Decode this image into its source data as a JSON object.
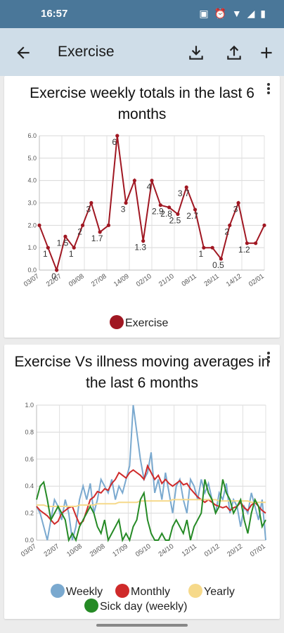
{
  "status_bar": {
    "time": "16:57"
  },
  "app_bar": {
    "title": "Exercise"
  },
  "colors": {
    "status_bar": "#4a7799",
    "app_bar": "#cfdde8",
    "exercise": "#a01722",
    "weekly": "#7aa9cf",
    "monthly": "#cf2a2a",
    "yearly": "#f6d98a",
    "sick": "#258a25"
  },
  "icons": {
    "back": "arrow-left-icon",
    "download": "download-icon",
    "share": "share-icon",
    "add": "plus-icon",
    "menu": "more-vert-icon"
  },
  "chart_data": [
    {
      "type": "line",
      "title": "Exercise weekly totals in the last 6 months",
      "x_tick_labels": [
        "03/07",
        "22/07",
        "09/08",
        "27/08",
        "14/09",
        "02/10",
        "21/10",
        "08/11",
        "26/11",
        "14/12",
        "02/01"
      ],
      "ylim": [
        0,
        6
      ],
      "y_ticks": [
        "0.0",
        "1.0",
        "2.0",
        "3.0",
        "4.0",
        "5.0",
        "6.0"
      ],
      "grid": true,
      "legend": "bottom",
      "series": [
        {
          "name": "Exercise",
          "values": [
            2.0,
            1.0,
            0.0,
            1.5,
            1.0,
            2.0,
            3.0,
            1.7,
            2.0,
            6.0,
            3.0,
            4.0,
            1.3,
            4.0,
            2.9,
            2.8,
            2.5,
            3.7,
            2.7,
            1.0,
            1.0,
            0.5,
            2.0,
            3.0,
            1.2,
            1.2,
            2.0
          ]
        }
      ],
      "data_labels": [
        "",
        "1",
        "0",
        "1.5",
        "1",
        "2",
        "3",
        "1.7",
        "",
        "6",
        "3",
        "",
        "1.3",
        "4",
        "2.9",
        "2.8",
        "2.5",
        "3.7",
        "2.7",
        "1",
        "",
        "0.5",
        "2",
        "3",
        "1.2",
        "",
        ""
      ]
    },
    {
      "type": "line",
      "title": "Exercise Vs illness moving averages in the last 6 months",
      "x_tick_labels": [
        "03/07",
        "22/07",
        "10/08",
        "29/08",
        "17/09",
        "05/10",
        "24/10",
        "12/11",
        "01/12",
        "20/12",
        "07/01"
      ],
      "ylim": [
        0,
        1.0
      ],
      "y_ticks": [
        "0.0",
        "0.2",
        "0.4",
        "0.6",
        "0.8",
        "1.0"
      ],
      "grid": true,
      "legend": "bottom",
      "series": [
        {
          "name": "Weekly",
          "values": [
            0.25,
            0.2,
            0.1,
            0.0,
            0.15,
            0.3,
            0.25,
            0.15,
            0.3,
            0.2,
            0.0,
            0.1,
            0.3,
            0.4,
            0.3,
            0.42,
            0.2,
            0.3,
            0.45,
            0.4,
            0.35,
            0.45,
            0.3,
            0.4,
            0.35,
            0.45,
            0.55,
            1.0,
            0.8,
            0.6,
            0.45,
            0.5,
            0.65,
            0.35,
            0.45,
            0.3,
            0.5,
            0.35,
            0.2,
            0.4,
            0.45,
            0.3,
            0.2,
            0.45,
            0.4,
            0.3,
            0.45,
            0.35,
            0.42,
            0.3,
            0.2,
            0.35,
            0.3,
            0.42,
            0.2,
            0.3,
            0.25,
            0.1,
            0.25,
            0.2,
            0.35,
            0.25,
            0.15,
            0.3,
            0.0
          ]
        },
        {
          "name": "Monthly",
          "values": [
            0.25,
            0.22,
            0.2,
            0.18,
            0.15,
            0.12,
            0.14,
            0.2,
            0.22,
            0.24,
            0.25,
            0.18,
            0.12,
            0.14,
            0.22,
            0.3,
            0.32,
            0.36,
            0.35,
            0.38,
            0.37,
            0.42,
            0.45,
            0.5,
            0.48,
            0.46,
            0.5,
            0.52,
            0.5,
            0.48,
            0.45,
            0.55,
            0.5,
            0.45,
            0.48,
            0.42,
            0.45,
            0.42,
            0.4,
            0.42,
            0.44,
            0.41,
            0.42,
            0.38,
            0.35,
            0.32,
            0.3,
            0.28,
            0.3,
            0.28,
            0.26,
            0.25,
            0.24,
            0.25,
            0.22,
            0.24,
            0.25,
            0.28,
            0.24,
            0.22,
            0.26,
            0.28,
            0.25,
            0.22,
            0.2
          ]
        },
        {
          "name": "Yearly",
          "values": [
            0.26,
            0.26,
            0.26,
            0.25,
            0.25,
            0.25,
            0.25,
            0.25,
            0.25,
            0.25,
            0.25,
            0.25,
            0.26,
            0.26,
            0.26,
            0.26,
            0.26,
            0.27,
            0.27,
            0.27,
            0.27,
            0.27,
            0.27,
            0.28,
            0.28,
            0.28,
            0.28,
            0.28,
            0.28,
            0.29,
            0.29,
            0.29,
            0.29,
            0.29,
            0.29,
            0.29,
            0.29,
            0.29,
            0.3,
            0.3,
            0.3,
            0.3,
            0.3,
            0.3,
            0.3,
            0.3,
            0.3,
            0.3,
            0.3,
            0.3,
            0.3,
            0.29,
            0.29,
            0.29,
            0.29,
            0.29,
            0.29,
            0.29,
            0.29,
            0.29,
            0.28,
            0.28,
            0.28,
            0.28,
            0.28
          ]
        },
        {
          "name": "Sick day (weekly)",
          "values": [
            0.3,
            0.4,
            0.43,
            0.3,
            0.15,
            0.2,
            0.25,
            0.2,
            0.15,
            0.0,
            0.05,
            0.0,
            0.1,
            0.15,
            0.2,
            0.25,
            0.2,
            0.1,
            0.05,
            0.15,
            0.0,
            0.05,
            0.1,
            0.15,
            0.0,
            0.05,
            0.0,
            0.1,
            0.15,
            0.3,
            0.35,
            0.15,
            0.05,
            0.0,
            0.0,
            0.05,
            0.0,
            0.0,
            0.1,
            0.15,
            0.1,
            0.05,
            0.15,
            0.0,
            0.1,
            0.15,
            0.2,
            0.45,
            0.35,
            0.3,
            0.2,
            0.25,
            0.45,
            0.35,
            0.3,
            0.2,
            0.25,
            0.3,
            0.15,
            0.05,
            0.2,
            0.3,
            0.25,
            0.1,
            0.15
          ]
        }
      ]
    }
  ]
}
